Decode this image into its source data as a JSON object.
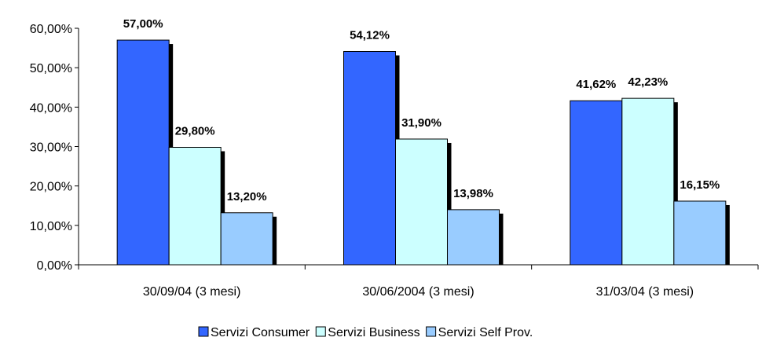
{
  "chart_data": {
    "type": "bar",
    "categories": [
      "30/09/04 (3 mesi)",
      "30/06/2004 (3 mesi)",
      "31/03/04 (3 mesi)"
    ],
    "series": [
      {
        "name": "Servizi Consumer",
        "values": [
          57.0,
          54.12,
          41.62
        ],
        "labels": [
          "57,00%",
          "54,12%",
          "41,62%"
        ],
        "color": "#3366FF"
      },
      {
        "name": "Servizi Business",
        "values": [
          29.8,
          31.9,
          42.23
        ],
        "labels": [
          "29,80%",
          "31,90%",
          "42,23%"
        ],
        "color": "#CCFFFF"
      },
      {
        "name": "Servizi Self Prov.",
        "values": [
          13.2,
          13.98,
          16.15
        ],
        "labels": [
          "13,20%",
          "13,98%",
          "16,15%"
        ],
        "color": "#99CCFF"
      }
    ],
    "y_ticks": [
      0,
      10,
      20,
      30,
      40,
      50,
      60
    ],
    "y_tick_labels": [
      "0,00%",
      "10,00%",
      "20,00%",
      "30,00%",
      "40,00%",
      "50,00%",
      "60,00%"
    ],
    "ylim": [
      0,
      60
    ],
    "grid": false,
    "legend_position": "bottom-center",
    "title": "",
    "xlabel": "",
    "ylabel": ""
  }
}
